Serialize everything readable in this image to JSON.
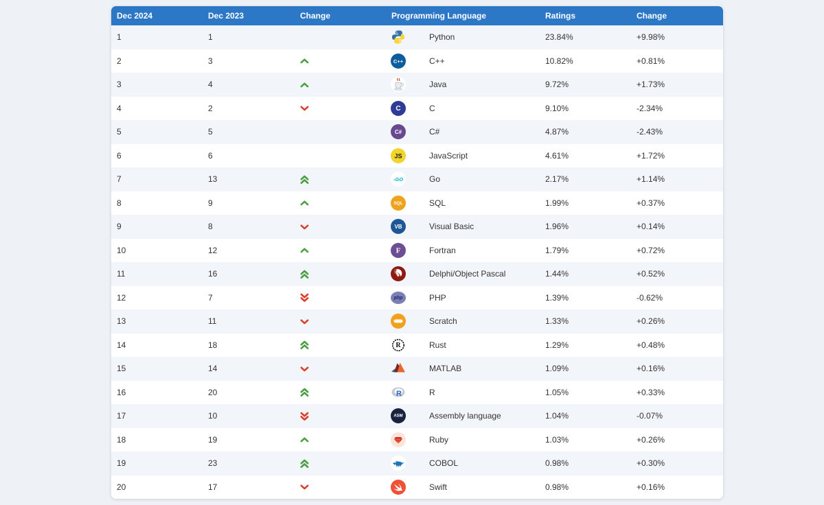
{
  "colors": {
    "header_bg": "#2d78c6",
    "header_text": "#ffffff",
    "stripe_row": "#f2f6fa",
    "page_bg": "#eef2f7",
    "body_text": "#333333",
    "up_arrow": "#4c9e42",
    "down_arrow": "#dc3e2a"
  },
  "table": {
    "headers": {
      "dec2024": "Dec 2024",
      "dec2023": "Dec 2023",
      "position_change": "Change",
      "language": "Programming Language",
      "ratings": "Ratings",
      "ratings_change": "Change"
    },
    "rows": [
      {
        "dec2024": "1",
        "dec2023": "1",
        "movement": "none",
        "language": "Python",
        "ratings": "23.84%",
        "change": "+9.98%",
        "icon": {
          "name": "python-icon",
          "kind": "python",
          "top": "#3572A5",
          "bottom": "#FFD43B"
        }
      },
      {
        "dec2024": "2",
        "dec2023": "3",
        "movement": "up",
        "language": "C++",
        "ratings": "10.82%",
        "change": "+0.81%",
        "icon": {
          "name": "cpp-icon",
          "kind": "badge",
          "bg": "#0d5d9e",
          "fg": "#ffffff",
          "text": "C++",
          "font_size": 7.5
        }
      },
      {
        "dec2024": "3",
        "dec2023": "4",
        "movement": "up",
        "language": "Java",
        "ratings": "9.72%",
        "change": "+1.73%",
        "icon": {
          "name": "java-icon",
          "kind": "java",
          "cup": "#e7edf1",
          "steam": "#d43f2a",
          "outline": "#aebec8"
        }
      },
      {
        "dec2024": "4",
        "dec2023": "2",
        "movement": "down",
        "language": "C",
        "ratings": "9.10%",
        "change": "-2.34%",
        "icon": {
          "name": "c-icon",
          "kind": "badge",
          "bg": "#2f3c95",
          "fg": "#ffffff",
          "text": "C",
          "font_size": 10
        }
      },
      {
        "dec2024": "5",
        "dec2023": "5",
        "movement": "none",
        "language": "C#",
        "ratings": "4.87%",
        "change": "-2.43%",
        "icon": {
          "name": "csharp-icon",
          "kind": "badge",
          "bg": "#68498f",
          "fg": "#ffffff",
          "text": "C#",
          "font_size": 8
        }
      },
      {
        "dec2024": "6",
        "dec2023": "6",
        "movement": "none",
        "language": "JavaScript",
        "ratings": "4.61%",
        "change": "+1.72%",
        "icon": {
          "name": "javascript-icon",
          "kind": "badge",
          "bg": "#f1d52c",
          "fg": "#1a1a1a",
          "text": "JS",
          "font_size": 9
        }
      },
      {
        "dec2024": "7",
        "dec2023": "13",
        "movement": "up2",
        "language": "Go",
        "ratings": "2.17%",
        "change": "+1.14%",
        "icon": {
          "name": "go-icon",
          "kind": "badge",
          "bg": "#ffffff",
          "fg": "#00acd7",
          "text": "-GO",
          "font_size": 7.5,
          "italic": true
        }
      },
      {
        "dec2024": "8",
        "dec2023": "9",
        "movement": "up",
        "language": "SQL",
        "ratings": "1.99%",
        "change": "+0.37%",
        "icon": {
          "name": "sql-icon",
          "kind": "badge",
          "bg": "#efa31d",
          "fg": "#ffffff",
          "text": "SQL",
          "font_size": 6.5
        }
      },
      {
        "dec2024": "9",
        "dec2023": "8",
        "movement": "down",
        "language": "Visual Basic",
        "ratings": "1.96%",
        "change": "+0.14%",
        "icon": {
          "name": "visual-basic-icon",
          "kind": "badge",
          "bg": "#1f5796",
          "fg": "#ffffff",
          "text": "VB",
          "font_size": 8
        }
      },
      {
        "dec2024": "10",
        "dec2023": "12",
        "movement": "up",
        "language": "Fortran",
        "ratings": "1.79%",
        "change": "+0.72%",
        "icon": {
          "name": "fortran-icon",
          "kind": "badge",
          "bg": "#6d4e95",
          "fg": "#ffffff",
          "text": "F",
          "font_size": 11,
          "serif": true
        }
      },
      {
        "dec2024": "11",
        "dec2023": "16",
        "movement": "up2",
        "language": "Delphi/Object Pascal",
        "ratings": "1.44%",
        "change": "+0.52%",
        "icon": {
          "name": "delphi-icon",
          "kind": "delphi",
          "bg": "#8e1a12"
        }
      },
      {
        "dec2024": "12",
        "dec2023": "7",
        "movement": "down2",
        "language": "PHP",
        "ratings": "1.39%",
        "change": "-0.62%",
        "icon": {
          "name": "php-icon",
          "kind": "badge",
          "bg": "#7a7fb5",
          "fg": "#1c2763",
          "text": "php",
          "font_size": 7,
          "italic": true,
          "shape": "ellipse"
        }
      },
      {
        "dec2024": "13",
        "dec2023": "11",
        "movement": "down",
        "language": "Scratch",
        "ratings": "1.33%",
        "change": "+0.26%",
        "icon": {
          "name": "scratch-icon",
          "kind": "scratch",
          "bg": "#f2a11e"
        }
      },
      {
        "dec2024": "14",
        "dec2023": "18",
        "movement": "up2",
        "language": "Rust",
        "ratings": "1.29%",
        "change": "+0.48%",
        "icon": {
          "name": "rust-icon",
          "kind": "rust",
          "fg": "#111111"
        }
      },
      {
        "dec2024": "15",
        "dec2023": "14",
        "movement": "down",
        "language": "MATLAB",
        "ratings": "1.09%",
        "change": "+0.16%",
        "icon": {
          "name": "matlab-icon",
          "kind": "matlab",
          "left": "#2e6f77",
          "mid": "#7b2330",
          "right": "#e8672c"
        }
      },
      {
        "dec2024": "16",
        "dec2023": "20",
        "movement": "up2",
        "language": "R",
        "ratings": "1.05%",
        "change": "+0.33%",
        "icon": {
          "name": "r-icon",
          "kind": "r",
          "ring": "#c3c9ce",
          "letter": "#2467c6"
        }
      },
      {
        "dec2024": "17",
        "dec2023": "10",
        "movement": "down2",
        "language": "Assembly language",
        "ratings": "1.04%",
        "change": "-0.07%",
        "icon": {
          "name": "assembly-icon",
          "kind": "badge",
          "bg": "#18243f",
          "fg": "#ffffff",
          "text": "ASM",
          "font_size": 6
        }
      },
      {
        "dec2024": "18",
        "dec2023": "19",
        "movement": "up",
        "language": "Ruby",
        "ratings": "1.03%",
        "change": "+0.26%",
        "icon": {
          "name": "ruby-icon",
          "kind": "ruby",
          "bg": "#fbe5d8",
          "gem": "#d22b1f"
        }
      },
      {
        "dec2024": "19",
        "dec2023": "23",
        "movement": "up2",
        "language": "COBOL",
        "ratings": "0.98%",
        "change": "+0.30%",
        "icon": {
          "name": "cobol-icon",
          "kind": "cobol",
          "color": "#1b75bb"
        }
      },
      {
        "dec2024": "20",
        "dec2023": "17",
        "movement": "down",
        "language": "Swift",
        "ratings": "0.98%",
        "change": "+0.16%",
        "icon": {
          "name": "swift-icon",
          "kind": "swift",
          "bg": "#ef5136"
        }
      }
    ]
  }
}
